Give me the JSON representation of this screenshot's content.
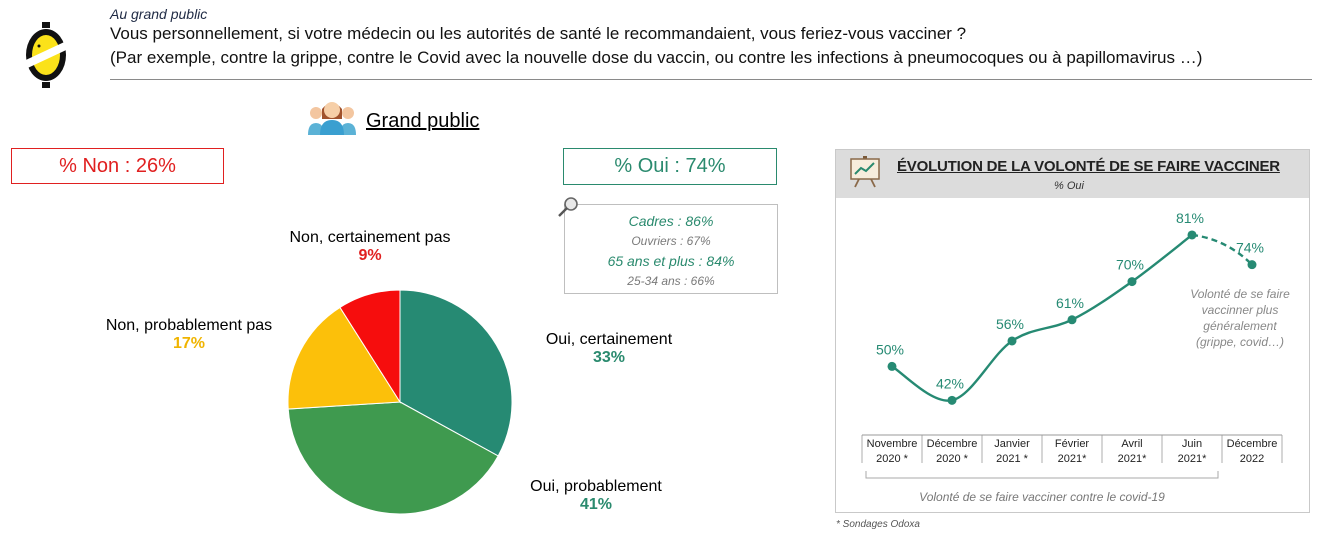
{
  "header": {
    "section": "Au grand public",
    "question_line1": "Vous personnellement, si votre médecin ou les autorités de santé le recommandaient, vous feriez-vous vacciner ?",
    "question_line2": "(Par exemple, contre la grippe, contre le Covid avec la nouvelle dose du vaccin, ou contre les infections à pneumocoques ou à papillomavirus …)"
  },
  "group_title": "Grand public",
  "summary": {
    "non": "% Non : 26%",
    "oui": "% Oui : 74%"
  },
  "details": [
    {
      "text": "Cadres : 86%",
      "style": "green"
    },
    {
      "text": "Ouvriers : 67%",
      "style": "grey"
    },
    {
      "text": "65 ans et plus : 84%",
      "style": "green"
    },
    {
      "text": "25-34 ans : 66%",
      "style": "grey"
    }
  ],
  "colors": {
    "non_red": "#e02020",
    "oui_green": "#2a8a6e",
    "pie_oui_cert": "#268a73",
    "pie_oui_prob": "#3f9a4f",
    "pie_non_prob": "#fcc00a",
    "pie_non_cert": "#f60d0d",
    "line_green": "#268a73",
    "value_yellow": "#f0b400"
  },
  "chart_data": [
    {
      "type": "pie",
      "slices": [
        {
          "label": "Oui, certainement",
          "value": 33,
          "value_label": "33%",
          "color": "#268a73"
        },
        {
          "label": "Oui, probablement",
          "value": 41,
          "value_label": "41%",
          "color": "#3f9a4f"
        },
        {
          "label": "Non, probablement pas",
          "value": 17,
          "value_label": "17%",
          "color": "#fcc00a"
        },
        {
          "label": "Non, certainement pas",
          "value": 9,
          "value_label": "9%",
          "color": "#f60d0d"
        }
      ]
    },
    {
      "type": "line",
      "title": "ÉVOLUTION DE LA VOLONTÉ DE SE FAIRE VACCINER",
      "subtitle": "% Oui",
      "categories": [
        [
          "Novembre",
          "2020 *"
        ],
        [
          "Décembre",
          "2020 *"
        ],
        [
          "Janvier",
          "2021 *"
        ],
        [
          "Février",
          "2021*"
        ],
        [
          "Avril",
          "2021*"
        ],
        [
          "Juin",
          "2021*"
        ],
        [
          "Décembre",
          "2022"
        ]
      ],
      "values": [
        50,
        42,
        56,
        61,
        70,
        81,
        74
      ],
      "value_labels": [
        "50%",
        "42%",
        "56%",
        "61%",
        "70%",
        "81%",
        "74%"
      ],
      "covid_bracket_label": "Volonté de se faire vacciner contre le covid-19",
      "annotation": [
        "Volonté de se faire",
        "vaccinner plus",
        "généralement",
        "(grippe, covid…)"
      ],
      "footnote": "* Sondages Odoxa"
    }
  ]
}
